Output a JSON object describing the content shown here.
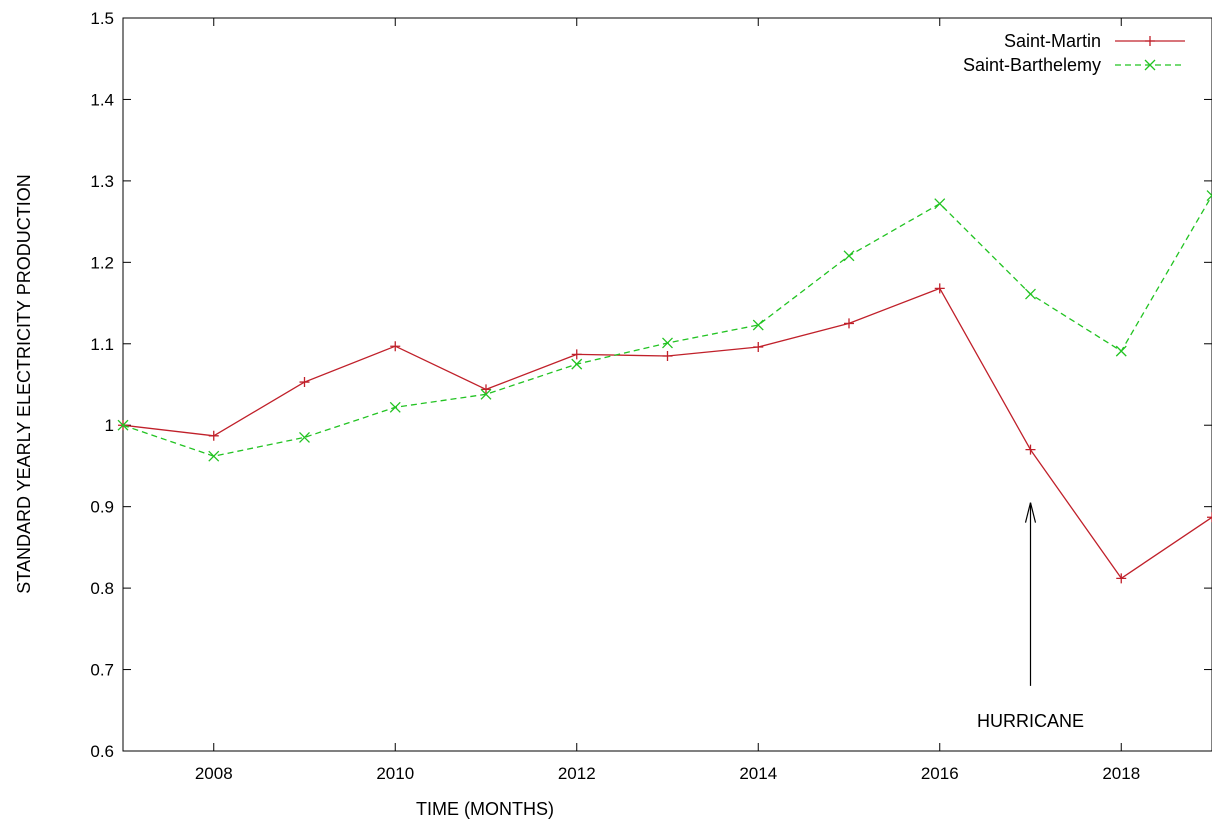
{
  "chart_data": {
    "type": "line",
    "title": "",
    "xlabel": "TIME (MONTHS)",
    "ylabel": "STANDARD YEARLY ELECTRICITY PRODUCTION",
    "xlim": [
      2007,
      2019
    ],
    "ylim": [
      0.6,
      1.5
    ],
    "x_ticks": [
      2008,
      2010,
      2012,
      2014,
      2016,
      2018
    ],
    "y_ticks": [
      "0.6",
      "0.7",
      "0.8",
      "0.9",
      "1",
      "1.1",
      "1.2",
      "1.3",
      "1.4",
      "1.5"
    ],
    "grid": false,
    "legend_position": "top-right",
    "x": [
      2007,
      2008,
      2009,
      2010,
      2011,
      2012,
      2013,
      2014,
      2015,
      2016,
      2017,
      2018,
      2019
    ],
    "series": [
      {
        "name": "Saint-Martin",
        "color": "#c0202a",
        "marker": "plus",
        "dash": "solid",
        "values": [
          1.0,
          0.987,
          1.053,
          1.097,
          1.044,
          1.087,
          1.085,
          1.096,
          1.125,
          1.168,
          0.97,
          0.812,
          0.887
        ]
      },
      {
        "name": "Saint-Barthelemy",
        "color": "#22c322",
        "marker": "cross",
        "dash": "dashed",
        "values": [
          1.0,
          0.962,
          0.985,
          1.022,
          1.038,
          1.075,
          1.101,
          1.123,
          1.208,
          1.272,
          1.161,
          1.091,
          1.282
        ]
      }
    ],
    "annotations": [
      {
        "text": "HURRICANE",
        "x": 2017,
        "arrow_from_y": 0.68,
        "arrow_to_y": 0.905
      }
    ]
  }
}
